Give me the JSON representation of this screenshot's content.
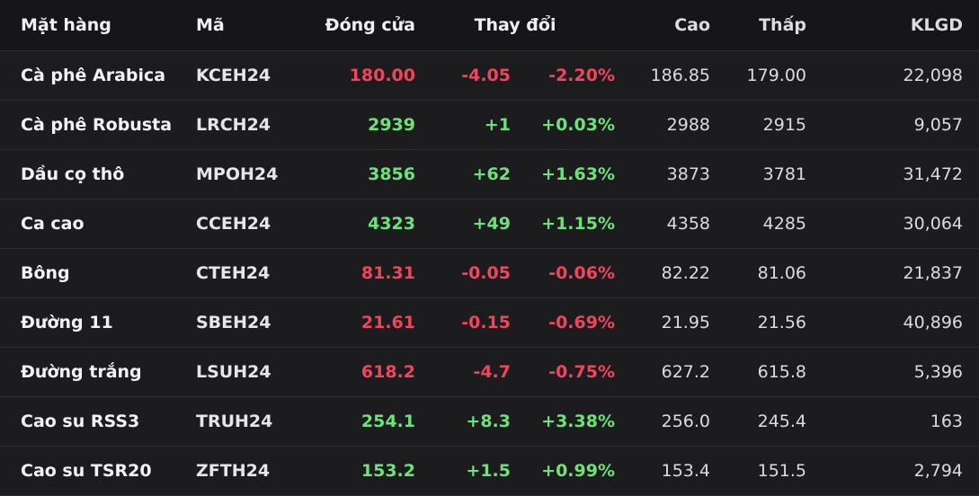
{
  "colors": {
    "up": "#6ee17a",
    "down": "#f0455a",
    "background": "#1c1c1e",
    "header_background": "#161618"
  },
  "table": {
    "headers": {
      "name": "Mặt hàng",
      "code": "Mã",
      "close": "Đóng cửa",
      "change": "Thay đổi",
      "high": "Cao",
      "low": "Thấp",
      "volume": "KLGD"
    },
    "rows": [
      {
        "name": "Cà phê Arabica",
        "code": "KCEH24",
        "close": "180.00",
        "change": "-4.05",
        "pct": "-2.20%",
        "high": "186.85",
        "low": "179.00",
        "volume": "22,098",
        "direction": "down"
      },
      {
        "name": "Cà phê Robusta",
        "code": "LRCH24",
        "close": "2939",
        "change": "+1",
        "pct": "+0.03%",
        "high": "2988",
        "low": "2915",
        "volume": "9,057",
        "direction": "up"
      },
      {
        "name": "Dầu cọ thô",
        "code": "MPOH24",
        "close": "3856",
        "change": "+62",
        "pct": "+1.63%",
        "high": "3873",
        "low": "3781",
        "volume": "31,472",
        "direction": "up"
      },
      {
        "name": "Ca cao",
        "code": "CCEH24",
        "close": "4323",
        "change": "+49",
        "pct": "+1.15%",
        "high": "4358",
        "low": "4285",
        "volume": "30,064",
        "direction": "up"
      },
      {
        "name": "Bông",
        "code": "CTEH24",
        "close": "81.31",
        "change": "-0.05",
        "pct": "-0.06%",
        "high": "82.22",
        "low": "81.06",
        "volume": "21,837",
        "direction": "down"
      },
      {
        "name": "Đường 11",
        "code": "SBEH24",
        "close": "21.61",
        "change": "-0.15",
        "pct": "-0.69%",
        "high": "21.95",
        "low": "21.56",
        "volume": "40,896",
        "direction": "down"
      },
      {
        "name": "Đường trắng",
        "code": "LSUH24",
        "close": "618.2",
        "change": "-4.7",
        "pct": "-0.75%",
        "high": "627.2",
        "low": "615.8",
        "volume": "5,396",
        "direction": "down"
      },
      {
        "name": "Cao su RSS3",
        "code": "TRUH24",
        "close": "254.1",
        "change": "+8.3",
        "pct": "+3.38%",
        "high": "256.0",
        "low": "245.4",
        "volume": "163",
        "direction": "up"
      },
      {
        "name": "Cao su TSR20",
        "code": "ZFTH24",
        "close": "153.2",
        "change": "+1.5",
        "pct": "+0.99%",
        "high": "153.4",
        "low": "151.5",
        "volume": "2,794",
        "direction": "up"
      }
    ]
  }
}
